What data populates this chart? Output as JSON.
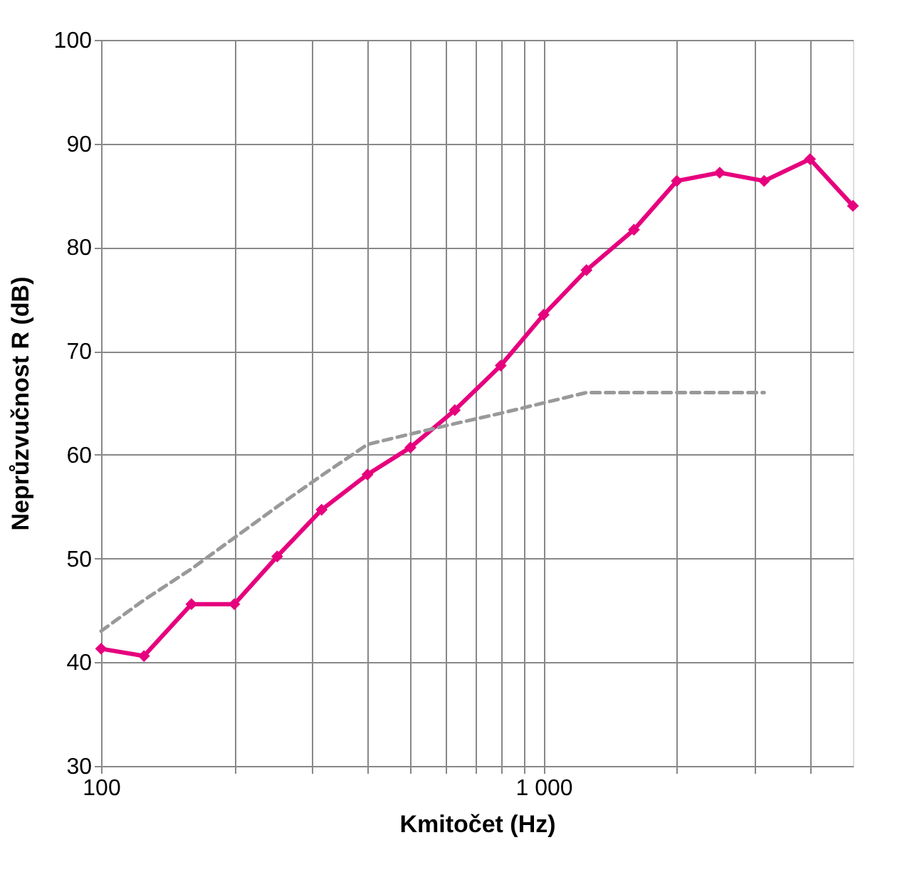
{
  "chart_data": {
    "type": "line",
    "xlabel": "Kmitočet (Hz)",
    "ylabel": "Neprůzvučnost R (dB)",
    "log": "x",
    "grid": true,
    "xlim": [
      100,
      5000
    ],
    "ylim": [
      30,
      100
    ],
    "xticks": [
      100,
      {
        "value": 200,
        "label": null
      },
      {
        "value": 300,
        "label": null
      },
      {
        "value": 400,
        "label": null
      },
      {
        "value": 500,
        "label": null
      },
      {
        "value": 600,
        "label": null
      },
      {
        "value": 700,
        "label": null
      },
      {
        "value": 800,
        "label": null
      },
      {
        "value": 900,
        "label": null
      },
      {
        "value": 1000,
        "label": "1 000"
      },
      {
        "value": 2000,
        "label": null
      },
      {
        "value": 3000,
        "label": null
      },
      {
        "value": 4000,
        "label": null
      }
    ],
    "yticks": [
      30,
      40,
      50,
      60,
      70,
      80,
      90,
      100
    ],
    "series": [
      {
        "color": "#e6007e",
        "marker": "diamond",
        "line_style": "solid",
        "x": [
          100,
          125,
          160,
          200,
          250,
          315,
          400,
          500,
          630,
          800,
          1000,
          1250,
          1600,
          2000,
          2500,
          3150,
          4000,
          5000
        ],
        "values": [
          41.3,
          40.6,
          45.6,
          45.6,
          50.2,
          54.7,
          58.1,
          60.7,
          64.3,
          68.6,
          73.5,
          77.8,
          81.7,
          86.4,
          87.2,
          86.4,
          88.5,
          84
        ]
      },
      {
        "color": "#999999",
        "marker": "none",
        "line_style": "dashed",
        "x": [
          100,
          125,
          160,
          200,
          250,
          315,
          400,
          500,
          630,
          800,
          1000,
          1250,
          1600,
          2000,
          2500,
          3150
        ],
        "values": [
          43,
          46,
          49,
          52,
          55,
          58,
          61,
          62,
          63,
          64,
          65,
          66,
          66,
          66,
          66,
          66
        ]
      }
    ]
  }
}
